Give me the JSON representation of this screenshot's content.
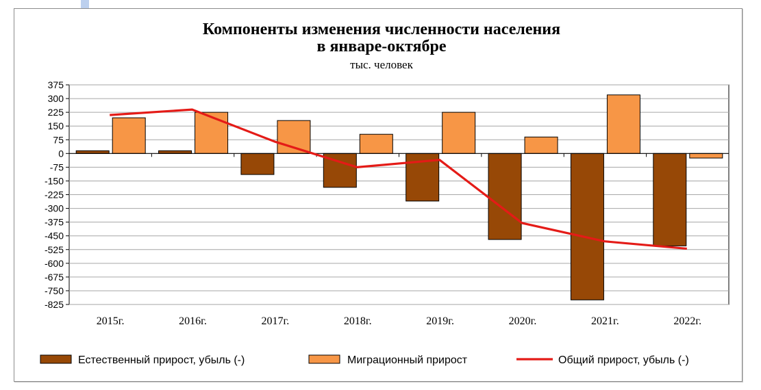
{
  "chart_data": {
    "type": "bar",
    "title": [
      "Компоненты изменения численности населения",
      "в январе-октябре"
    ],
    "subtitle": "тыс. человек",
    "categories": [
      "2015г.",
      "2016г.",
      "2017г.",
      "2018г.",
      "2019г.",
      "2020г.",
      "2021г.",
      "2022г."
    ],
    "series": [
      {
        "name": "Естественный прирост, убыль (-)",
        "kind": "bar",
        "color": "#974806",
        "values": [
          15,
          15,
          -115,
          -185,
          -260,
          -470,
          -800,
          -505
        ]
      },
      {
        "name": "Миграционный прирост",
        "kind": "bar",
        "color": "#f79646",
        "values": [
          195,
          225,
          180,
          105,
          225,
          90,
          320,
          -25
        ]
      },
      {
        "name": "Общий прирост, убыль (-)",
        "kind": "line",
        "color": "#e41b17",
        "values": [
          210,
          240,
          65,
          -75,
          -35,
          -380,
          -480,
          -520
        ]
      }
    ],
    "ylim": [
      -825,
      375
    ],
    "yticks": [
      375,
      300,
      225,
      150,
      75,
      0,
      -75,
      -150,
      -225,
      -300,
      -375,
      -450,
      -525,
      -600,
      -675,
      -750,
      -825
    ],
    "grid": true,
    "legend_position": "bottom"
  }
}
